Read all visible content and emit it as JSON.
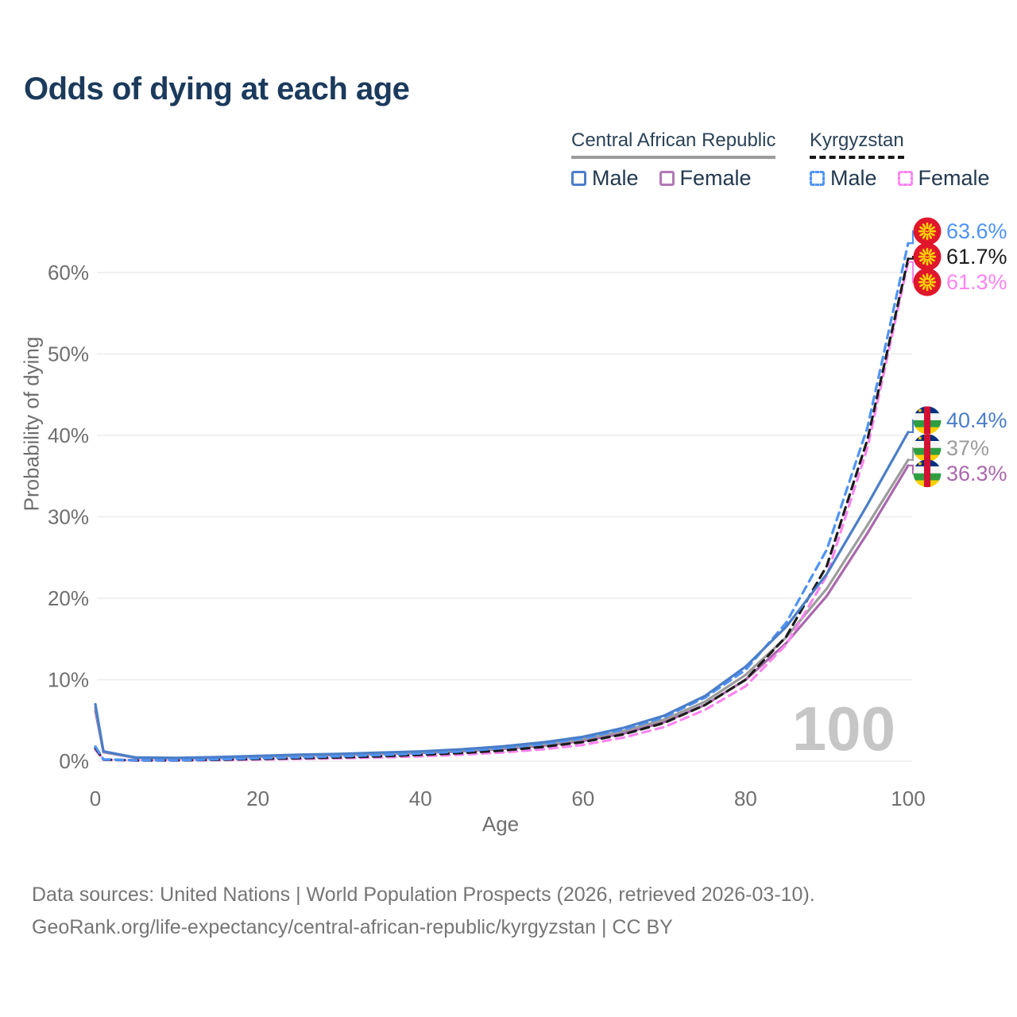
{
  "title": "Odds of dying at each age",
  "legend": {
    "groups": [
      {
        "country": "Central African Republic",
        "style": "solid",
        "items": [
          {
            "label": "Male",
            "color": "#4b7ec8"
          },
          {
            "label": "Female",
            "color": "#b178b4"
          }
        ]
      },
      {
        "country": "Kyrgyzstan",
        "style": "dashed",
        "items": [
          {
            "label": "Male",
            "color": "#4f93f7"
          },
          {
            "label": "Female",
            "color": "#fb84f0"
          }
        ]
      }
    ]
  },
  "chart_data": {
    "type": "line",
    "title": "Odds of dying at each age",
    "xlabel": "Age",
    "ylabel": "Probability of dying",
    "x_ticks": [
      0,
      20,
      40,
      60,
      80,
      100
    ],
    "y_ticks": [
      "0%",
      "10%",
      "20%",
      "30%",
      "40%",
      "50%",
      "60%"
    ],
    "xlim": [
      0,
      100
    ],
    "ylim": [
      0,
      66
    ],
    "grid": "horizontal-only",
    "legend_position": "top-right",
    "watermark": "100",
    "x": [
      0,
      1,
      5,
      10,
      15,
      20,
      25,
      30,
      35,
      40,
      45,
      50,
      55,
      60,
      65,
      70,
      75,
      80,
      85,
      90,
      95,
      100
    ],
    "series": [
      {
        "id": "car-male",
        "name": "Central African Republic Male",
        "country": "Central African Republic",
        "sex": "male",
        "style": "solid",
        "color": "#4b7ec8",
        "flag": "central-african-republic-flag",
        "end_label": "40.4%",
        "end_value": 40.4,
        "values": [
          7.0,
          1.2,
          0.45,
          0.4,
          0.5,
          0.65,
          0.8,
          0.9,
          1.05,
          1.2,
          1.45,
          1.8,
          2.3,
          3.0,
          4.1,
          5.6,
          8.0,
          11.6,
          16.5,
          23.0,
          31.5,
          40.4
        ]
      },
      {
        "id": "car-female",
        "name": "Central African Republic Female",
        "country": "Central African Republic",
        "sex": "female",
        "style": "solid",
        "color": "#aa68ad",
        "flag": "central-african-republic-flag",
        "end_label": "36.3%",
        "end_value": 36.3,
        "values": [
          6.2,
          1.1,
          0.4,
          0.35,
          0.42,
          0.55,
          0.66,
          0.76,
          0.88,
          1.0,
          1.2,
          1.5,
          1.9,
          2.5,
          3.4,
          4.8,
          6.9,
          10.0,
          14.5,
          20.3,
          28.0,
          36.3
        ]
      },
      {
        "id": "car-both",
        "name": "Central African Republic Both sexes",
        "country": "Central African Republic",
        "sex": "both",
        "style": "solid",
        "color": "#9c9c9c",
        "flag": "central-african-republic-flag",
        "end_label": "37%",
        "end_value": 37.0,
        "values": [
          6.6,
          1.15,
          0.42,
          0.37,
          0.45,
          0.6,
          0.72,
          0.82,
          0.95,
          1.1,
          1.3,
          1.6,
          2.05,
          2.7,
          3.7,
          5.1,
          7.3,
          10.6,
          15.2,
          21.2,
          29.0,
          37.0
        ]
      },
      {
        "id": "kgz-male",
        "name": "Kyrgyzstan Male",
        "country": "Kyrgyzstan",
        "sex": "male",
        "style": "dashed",
        "color": "#4f93f7",
        "flag": "kyrgyzstan-flag",
        "end_label": "63.6%",
        "end_value": 63.6,
        "values": [
          1.8,
          0.22,
          0.12,
          0.12,
          0.22,
          0.36,
          0.48,
          0.6,
          0.75,
          0.95,
          1.2,
          1.6,
          2.1,
          2.8,
          3.9,
          5.4,
          7.8,
          11.2,
          17.0,
          26.0,
          41.0,
          63.6
        ]
      },
      {
        "id": "kgz-female",
        "name": "Kyrgyzstan Female",
        "country": "Kyrgyzstan",
        "sex": "female",
        "style": "dashed",
        "color": "#fb84f0",
        "flag": "kyrgyzstan-flag",
        "end_label": "61.3%",
        "end_value": 61.3,
        "values": [
          1.4,
          0.18,
          0.09,
          0.09,
          0.13,
          0.2,
          0.27,
          0.35,
          0.46,
          0.6,
          0.8,
          1.05,
          1.45,
          2.0,
          2.9,
          4.2,
          6.3,
          9.2,
          14.3,
          22.8,
          38.5,
          61.3
        ]
      },
      {
        "id": "kgz-both",
        "name": "Kyrgyzstan Both sexes",
        "country": "Kyrgyzstan",
        "sex": "both",
        "style": "dashed",
        "color": "#1c1c1c",
        "flag": "kyrgyzstan-flag",
        "end_label": "61.7%",
        "end_value": 61.7,
        "values": [
          1.6,
          0.2,
          0.1,
          0.1,
          0.17,
          0.27,
          0.36,
          0.46,
          0.6,
          0.78,
          1.0,
          1.3,
          1.75,
          2.35,
          3.3,
          4.7,
          6.9,
          10.0,
          15.3,
          24.0,
          39.5,
          61.7
        ]
      }
    ]
  },
  "colors": {
    "title": "#1b3a5c",
    "axis_text": "#6f6f6f",
    "gridline": "#ececec",
    "watermark": "#c6c6c6",
    "footer_text": "#757575",
    "car_flag": {
      "blue": "#003082",
      "white": "#f5f5f5",
      "green": "#2e9e41",
      "yellow": "#ffce00",
      "red": "#d21034"
    },
    "kgz_flag": {
      "red": "#e0162b",
      "yellow": "#ffd402"
    }
  },
  "footer": {
    "line1": "Data sources: United Nations | World Population Prospects (2026, retrieved 2026-03-10).",
    "line2": "GeoRank.org/life-expectancy/central-african-republic/kyrgyzstan | CC BY"
  }
}
